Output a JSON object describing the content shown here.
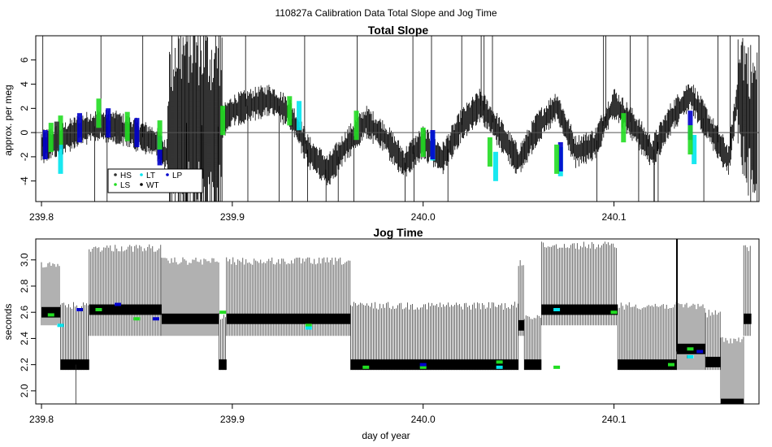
{
  "figure": {
    "title": "110827a   Calibration Data Total Slope and Jog Time"
  },
  "chart_data": [
    {
      "type": "scatter",
      "title": "Total Slope",
      "xlabel": "",
      "ylabel": "approx. per meg",
      "xlim": [
        239.797,
        240.176
      ],
      "ylim": [
        -5.7,
        8.0
      ],
      "xticks": [
        "239.8",
        "239.9",
        "240.0",
        "240.1"
      ],
      "yticks": [
        "-4",
        "-2",
        "0",
        "2",
        "4",
        "6"
      ],
      "reference_line": 0,
      "grid": false,
      "legend": {
        "position": "bottom-left",
        "entries": [
          {
            "label": "HS",
            "color": "#303030"
          },
          {
            "label": "LT",
            "color": "#00e5ee"
          },
          {
            "label": "LP",
            "color": "#0000cc"
          },
          {
            "label": "LS",
            "color": "#22dd22"
          },
          {
            "label": "WT",
            "color": "#000000"
          }
        ]
      },
      "series": [
        {
          "name": "WT",
          "color": "#000000",
          "style": "errorbar-trace",
          "trend": [
            [
              239.8,
              -1.2
            ],
            [
              239.81,
              -0.6
            ],
            [
              239.82,
              0.2
            ],
            [
              239.83,
              0.6
            ],
            [
              239.84,
              0.4
            ],
            [
              239.85,
              -0.2
            ],
            [
              239.86,
              -0.8
            ],
            [
              239.865,
              -2.0
            ],
            [
              239.87,
              0.5
            ],
            [
              239.88,
              1.0
            ],
            [
              239.89,
              0.0
            ],
            [
              239.9,
              1.8
            ],
            [
              239.91,
              2.3
            ],
            [
              239.92,
              2.7
            ],
            [
              239.93,
              1.6
            ],
            [
              239.94,
              -1.6
            ],
            [
              239.95,
              -3.2
            ],
            [
              239.96,
              -1.0
            ],
            [
              239.97,
              0.9
            ],
            [
              239.98,
              -0.4
            ],
            [
              239.99,
              -2.6
            ],
            [
              240.0,
              -0.8
            ],
            [
              240.01,
              -2.2
            ],
            [
              240.02,
              0.6
            ],
            [
              240.03,
              2.3
            ],
            [
              240.04,
              0.0
            ],
            [
              240.05,
              -2.4
            ],
            [
              240.06,
              0.4
            ],
            [
              240.07,
              2.2
            ],
            [
              240.08,
              -1.6
            ],
            [
              240.09,
              -1.0
            ],
            [
              240.1,
              2.4
            ],
            [
              240.11,
              0.6
            ],
            [
              240.12,
              -1.7
            ],
            [
              240.13,
              1.2
            ],
            [
              240.14,
              3.1
            ],
            [
              240.15,
              0.4
            ],
            [
              240.16,
              -2.3
            ],
            [
              240.165,
              3.4
            ],
            [
              240.17,
              1.0
            ],
            [
              240.175,
              0.0
            ]
          ]
        },
        {
          "name": "LT",
          "color": "#00e5ee",
          "points": [
            [
              239.81,
              -2.2
            ],
            [
              239.935,
              1.4
            ],
            [
              240.005,
              -1.1
            ],
            [
              240.038,
              -2.8
            ],
            [
              240.072,
              -2.4
            ],
            [
              240.142,
              -1.4
            ]
          ]
        },
        {
          "name": "LP",
          "color": "#0000cc",
          "points": [
            [
              239.802,
              -1.0
            ],
            [
              239.82,
              0.4
            ],
            [
              239.835,
              0.8
            ],
            [
              239.85,
              0.0
            ],
            [
              239.862,
              -1.5
            ],
            [
              240.005,
              -1.0
            ],
            [
              240.072,
              -2.0
            ],
            [
              240.14,
              0.6
            ]
          ]
        },
        {
          "name": "LS",
          "color": "#22dd22",
          "points": [
            [
              239.805,
              -0.4
            ],
            [
              239.81,
              0.2
            ],
            [
              239.83,
              1.6
            ],
            [
              239.845,
              0.5
            ],
            [
              239.862,
              -0.2
            ],
            [
              239.895,
              1.0
            ],
            [
              239.93,
              1.8
            ],
            [
              239.965,
              0.6
            ],
            [
              240.0,
              -0.8
            ],
            [
              240.035,
              -1.6
            ],
            [
              240.07,
              -2.2
            ],
            [
              240.105,
              0.4
            ],
            [
              240.14,
              -0.6
            ]
          ]
        },
        {
          "name": "HS",
          "color": "#303030",
          "points": [
            [
              239.808,
              -0.3
            ],
            [
              239.84,
              0.3
            ]
          ]
        }
      ]
    },
    {
      "type": "scatter",
      "title": "Jog Time",
      "xlabel": "day of year",
      "ylabel": "seconds",
      "xlim": [
        239.797,
        240.176
      ],
      "ylim": [
        1.9,
        3.16
      ],
      "xticks": [
        "239.8",
        "239.9",
        "240.0",
        "240.1"
      ],
      "yticks": [
        "2.0",
        "2.2",
        "2.4",
        "2.6",
        "2.8",
        "3.0"
      ],
      "grid": false,
      "segments": [
        {
          "x": [
            239.8,
            239.81
          ],
          "base": 2.6,
          "top": 3.0,
          "low": 2.5
        },
        {
          "x": [
            239.81,
            239.825
          ],
          "base": 2.2,
          "top": 2.68,
          "low": 2.16
        },
        {
          "x": [
            239.825,
            239.863
          ],
          "base": 2.62,
          "top": 3.12,
          "low": 2.42
        },
        {
          "x": [
            239.863,
            239.893
          ],
          "base": 2.55,
          "top": 3.02,
          "low": 2.42
        },
        {
          "x": [
            239.893,
            239.897
          ],
          "base": 2.2,
          "top": 2.6,
          "low": 2.16
        },
        {
          "x": [
            239.897,
            239.962
          ],
          "base": 2.55,
          "top": 3.02,
          "low": 2.42
        },
        {
          "x": [
            239.962,
            240.05
          ],
          "base": 2.2,
          "top": 2.68,
          "low": 2.16
        },
        {
          "x": [
            240.05,
            240.053
          ],
          "base": 2.5,
          "top": 3.0,
          "low": 2.42
        },
        {
          "x": [
            240.053,
            240.062
          ],
          "base": 2.2,
          "top": 2.6,
          "low": 2.16
        },
        {
          "x": [
            240.062,
            240.102
          ],
          "base": 2.62,
          "top": 3.14,
          "low": 2.5
        },
        {
          "x": [
            240.102,
            240.133
          ],
          "base": 2.2,
          "top": 2.68,
          "low": 2.16
        },
        {
          "x": [
            240.133,
            240.148
          ],
          "base": 2.32,
          "top": 2.68,
          "low": 2.16
        },
        {
          "x": [
            240.148,
            240.156
          ],
          "base": 2.22,
          "top": 2.62,
          "low": 2.16
        },
        {
          "x": [
            240.156,
            240.168
          ],
          "base": 1.9,
          "top": 2.42,
          "low": 1.9
        },
        {
          "x": [
            240.168,
            240.172
          ],
          "base": 2.55,
          "top": 3.12,
          "low": 2.42
        }
      ],
      "markers": [
        {
          "name": "LS",
          "color": "#22dd22",
          "points": [
            [
              239.805,
              2.58
            ],
            [
              239.83,
              2.62
            ],
            [
              239.85,
              2.55
            ],
            [
              239.895,
              2.6
            ],
            [
              239.94,
              2.5
            ],
            [
              239.97,
              2.18
            ],
            [
              240.0,
              2.18
            ],
            [
              240.04,
              2.22
            ],
            [
              240.07,
              2.18
            ],
            [
              240.1,
              2.6
            ],
            [
              240.13,
              2.2
            ],
            [
              240.14,
              2.32
            ]
          ]
        },
        {
          "name": "LT",
          "color": "#00e5ee",
          "points": [
            [
              239.81,
              2.5
            ],
            [
              239.94,
              2.48
            ],
            [
              240.04,
              2.18
            ],
            [
              240.07,
              2.62
            ],
            [
              240.14,
              2.26
            ]
          ]
        },
        {
          "name": "LP",
          "color": "#0000cc",
          "points": [
            [
              239.82,
              2.62
            ],
            [
              239.84,
              2.66
            ],
            [
              239.86,
              2.55
            ],
            [
              240.0,
              2.2
            ],
            [
              240.145,
              2.3
            ]
          ]
        }
      ]
    }
  ]
}
